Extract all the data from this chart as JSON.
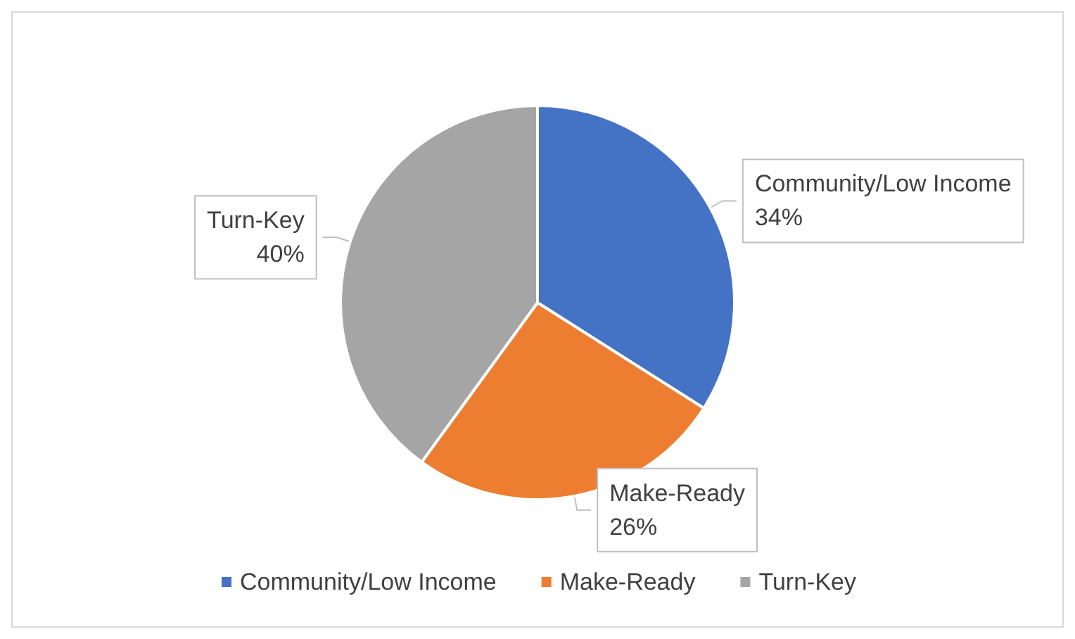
{
  "chart_data": {
    "type": "pie",
    "categories": [
      "Community/Low Income",
      "Make-Ready",
      "Turn-Key"
    ],
    "values": [
      34,
      26,
      40
    ],
    "colors": [
      "#4472c4",
      "#ed7d31",
      "#a5a5a5"
    ],
    "value_labels": [
      "34%",
      "26%",
      "40%"
    ],
    "legend": "bottom"
  }
}
